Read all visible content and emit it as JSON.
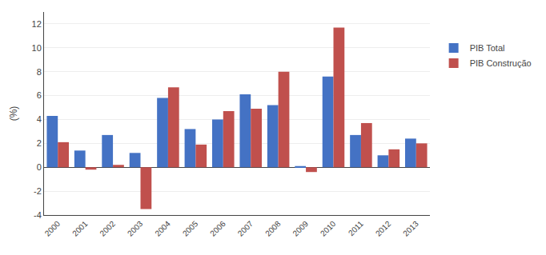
{
  "chart_data": {
    "type": "bar",
    "categories": [
      "2000",
      "2001",
      "2002",
      "2003",
      "2004",
      "2005",
      "2006",
      "2007",
      "2008",
      "2009",
      "2010",
      "2011",
      "2012",
      "2013"
    ],
    "series": [
      {
        "name": "PIB Total",
        "color": "#4472C4",
        "values": [
          4.3,
          1.4,
          2.7,
          1.2,
          5.8,
          3.2,
          4.0,
          6.1,
          5.2,
          0.1,
          7.6,
          2.7,
          1.0,
          2.4
        ]
      },
      {
        "name": "PIB Construção",
        "color": "#C0504D",
        "values": [
          2.1,
          -0.2,
          0.2,
          -3.5,
          6.7,
          1.9,
          4.7,
          4.9,
          8.0,
          -0.4,
          11.7,
          3.7,
          1.5,
          2.0
        ]
      }
    ],
    "ylabel": "(%)",
    "ylim": [
      -4,
      13
    ],
    "yticks": [
      -4,
      -2,
      0,
      2,
      4,
      6,
      8,
      10,
      12
    ],
    "grid": true,
    "legend": "right"
  }
}
